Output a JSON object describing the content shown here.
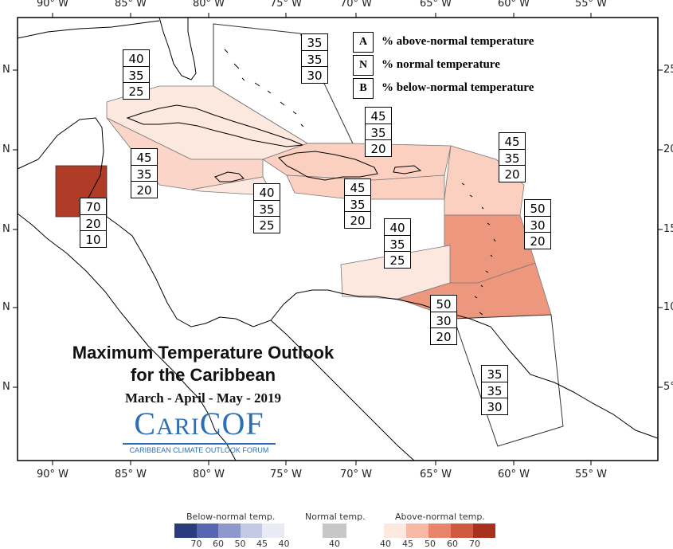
{
  "map": {
    "lon_labels": [
      "90° W",
      "85° W",
      "80° W",
      "75° W",
      "70° W",
      "65° W",
      "60° W",
      "55° W"
    ],
    "lat_label": "N",
    "lat_label_right": [
      "25",
      "20",
      "15",
      "10",
      "5°"
    ],
    "zones": [
      {
        "name": "bahamas",
        "values": [
          "35",
          "35",
          "30"
        ],
        "color": "#ffffff"
      },
      {
        "name": "cuba",
        "values": [
          "40",
          "35",
          "25"
        ],
        "color": "#fde8e0"
      },
      {
        "name": "jamaica-cayman",
        "values": [
          "45",
          "35",
          "20"
        ],
        "color": "#fbd5c8"
      },
      {
        "name": "belize",
        "values": [
          "70",
          "20",
          "10"
        ],
        "color": "#b03b27"
      },
      {
        "name": "jamaica-south",
        "values": [
          "40",
          "35",
          "25"
        ],
        "color": "#fde8e0"
      },
      {
        "name": "hispaniola-pr",
        "values": [
          "45",
          "35",
          "20"
        ],
        "color": "#fbd0c0"
      },
      {
        "name": "hispaniola-south",
        "values": [
          "45",
          "35",
          "20"
        ],
        "color": "#fbd0c0"
      },
      {
        "name": "leeward",
        "values": [
          "45",
          "35",
          "20"
        ],
        "color": "#fbd0c0"
      },
      {
        "name": "windward",
        "values": [
          "50",
          "30",
          "20"
        ],
        "color": "#ee977f"
      },
      {
        "name": "abc-islands",
        "values": [
          "40",
          "35",
          "25"
        ],
        "color": "#fde8e0"
      },
      {
        "name": "trinidad",
        "values": [
          "50",
          "30",
          "20"
        ],
        "color": "#ee977f"
      },
      {
        "name": "guianas",
        "values": [
          "35",
          "35",
          "30"
        ],
        "color": "#ffffff"
      }
    ]
  },
  "key": {
    "items": [
      {
        "letter": "A",
        "text": "% above-normal temperature"
      },
      {
        "letter": "N",
        "text": "% normal temperature"
      },
      {
        "letter": "B",
        "text": "% below-normal temperature"
      }
    ]
  },
  "title": {
    "line1": "Maximum Temperature Outlook",
    "line2": "for the Caribbean",
    "line3": "March - April - May - 2019"
  },
  "logo": {
    "name_a": "C",
    "name_b": "ARI",
    "name_c": "COF",
    "subtitle": "CARIBBEAN CLIMATE OUTLOOK FORUM"
  },
  "legend": {
    "below_label": "Below-normal temp.",
    "normal_label": "Normal temp.",
    "above_label": "Above-normal temp.",
    "below_ticks": [
      "70",
      "60",
      "50",
      "45",
      "40"
    ],
    "normal_ticks": [
      "40"
    ],
    "above_ticks": [
      "40",
      "45",
      "50",
      "60",
      "70"
    ],
    "below_colors": [
      "#2b3c7e",
      "#5666b0",
      "#8f98cc",
      "#c4c9e6",
      "#e8eaf6"
    ],
    "normal_color": "#c7c7c7",
    "above_colors": [
      "#fde8e0",
      "#f7b8a4",
      "#e8846a",
      "#cf5a40",
      "#a9301e"
    ]
  }
}
